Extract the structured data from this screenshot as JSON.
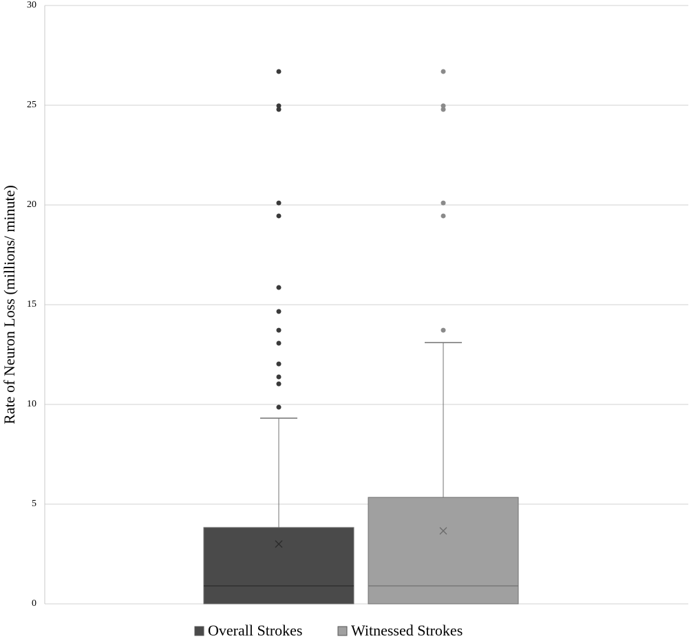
{
  "chart_data": {
    "type": "box",
    "ylabel": "Rate of Neuron Loss (millions/ minute)",
    "ylim": [
      0,
      30
    ],
    "yticks": [
      0,
      5,
      10,
      15,
      20,
      25,
      30
    ],
    "grid": true,
    "legend": "bottom",
    "series": [
      {
        "name": "Overall Strokes",
        "color": "#4a4a4a",
        "min": 0,
        "q1": 0,
        "median": 0.9,
        "q3": 3.83,
        "max": 9.31,
        "mean": 3.0,
        "outliers": [
          9.86,
          11.03,
          11.38,
          12.03,
          13.07,
          13.72,
          14.66,
          15.86,
          19.45,
          20.1,
          24.79,
          24.97,
          26.69
        ]
      },
      {
        "name": "Witnessed Strokes",
        "color": "#a0a0a0",
        "min": 0,
        "q1": 0,
        "median": 0.9,
        "q3": 5.34,
        "max": 13.1,
        "mean": 3.66,
        "outliers": [
          13.72,
          19.45,
          20.1,
          24.79,
          24.97,
          26.69
        ]
      }
    ]
  }
}
